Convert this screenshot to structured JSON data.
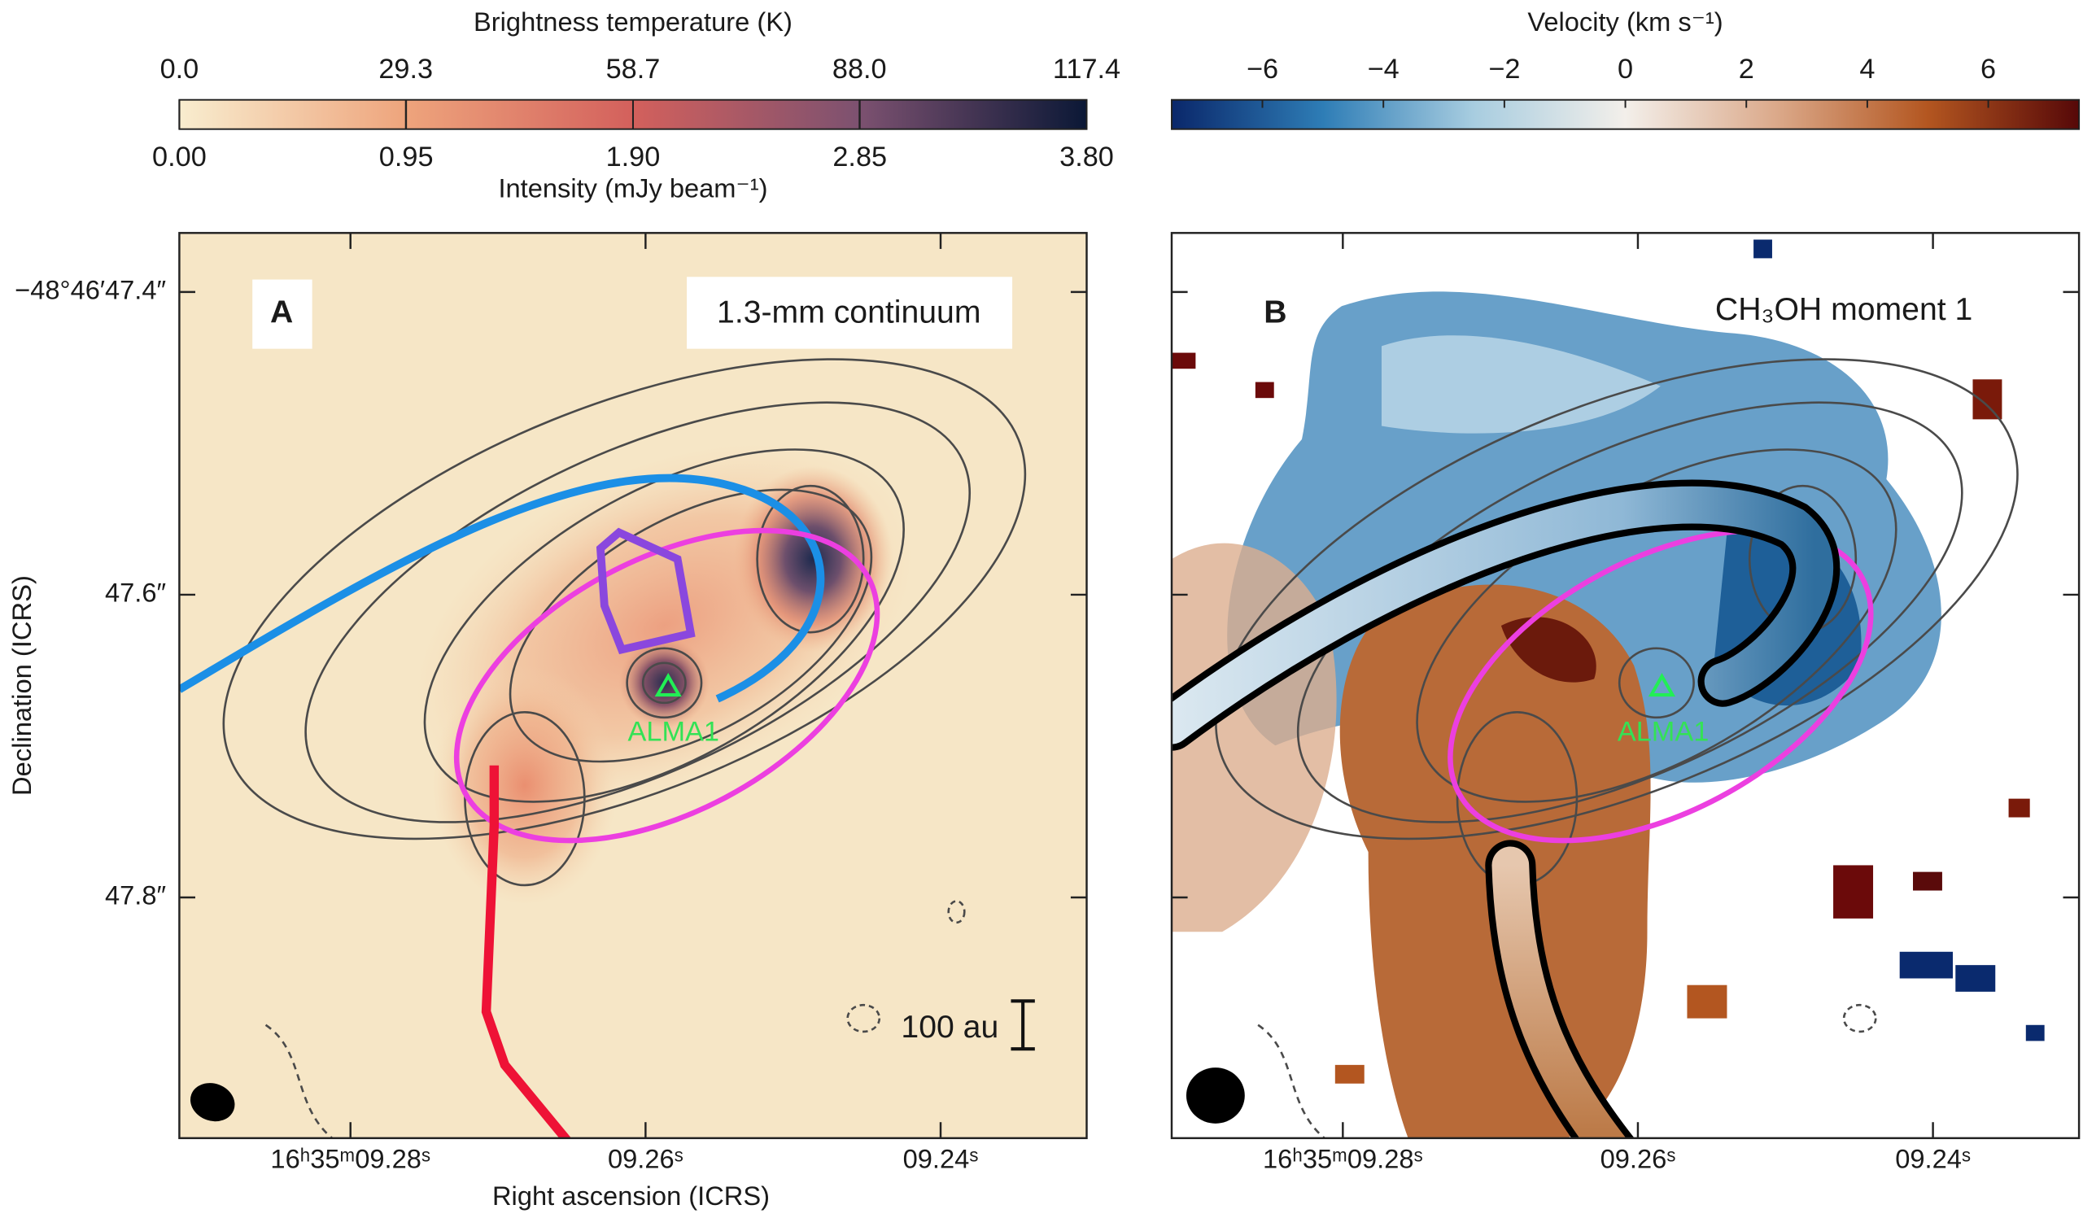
{
  "chart_data": [
    {
      "type": "image",
      "panel_label": "A",
      "annotation": "1.3-mm continuum",
      "source_label": "ALMA1",
      "scale_bar": "100 au",
      "xlabel": "Right ascension (ICRS)",
      "ylabel": "Declination (ICRS)",
      "xlim": [
        9.2916,
        9.2301
      ],
      "ylim": [
        47.959,
        47.361
      ],
      "xticks": [
        {
          "value": 9.28,
          "label": "16ʰ35ᵐ09.28ˢ"
        },
        {
          "value": 9.26,
          "label": "09.26ˢ"
        },
        {
          "value": 9.24,
          "label": "09.24ˢ"
        }
      ],
      "yticks": [
        {
          "value": 47.4,
          "label": "−48°46′47.4″"
        },
        {
          "value": 47.6,
          "label": "47.6″"
        },
        {
          "value": 47.8,
          "label": "47.8″"
        }
      ],
      "colorbar": {
        "label": "Brightness temperature (K)",
        "lim": [
          0,
          117.4
        ],
        "ticks": [
          {
            "value": 0,
            "label": "0.0"
          },
          29.3,
          58.7,
          {
            "value": 88,
            "label": "88.0"
          },
          117.4
        ],
        "colors": [
          "#f8edcf",
          "#eea47c",
          "#d3605c",
          "#7c5170",
          "#0b1836"
        ]
      },
      "colorbar2": {
        "label": "Intensity (mJy beam⁻¹)",
        "lim": [
          0,
          3.8
        ],
        "ticks": [
          {
            "value": 0,
            "label": "0.00"
          },
          0.95,
          {
            "value": 1.9,
            "label": "1.90"
          },
          2.85,
          {
            "value": 3.8,
            "label": "3.80"
          }
        ]
      }
    },
    {
      "type": "image",
      "panel_label": "B",
      "annotation": "CH₃OH moment 1",
      "source_label": "ALMA1",
      "xlim": [
        9.2916,
        9.2301
      ],
      "ylim": [
        47.959,
        47.361
      ],
      "xticks": [
        {
          "value": 9.28,
          "label": "16ʰ35ᵐ09.28ˢ"
        },
        {
          "value": 9.26,
          "label": "09.26ˢ"
        },
        {
          "value": 9.24,
          "label": "09.24ˢ"
        }
      ],
      "colorbar": {
        "label": "Velocity (km s⁻¹)",
        "lim": [
          -7.5,
          7.5
        ],
        "ticks": [
          {
            "value": -6,
            "label": "−6"
          },
          {
            "value": -4,
            "label": "−4"
          },
          {
            "value": -2,
            "label": "−2"
          },
          0,
          2,
          4,
          6
        ],
        "colors": [
          "#0a276a",
          "#2e7db6",
          "#a8cde0",
          "#f3efea",
          "#dba98a",
          "#b35620",
          "#560808"
        ]
      }
    }
  ]
}
